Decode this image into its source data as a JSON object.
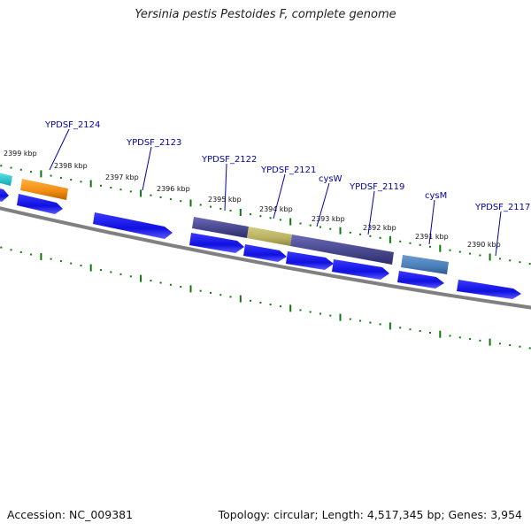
{
  "title": "Yersinia pestis Pestoides F, complete genome",
  "accession": "Accession: NC_009381",
  "stats": "Topology: circular; Length: 4,517,345 bp; Genes: 3,954",
  "kbp_labels": [
    "2399 kbp",
    "2398 kbp",
    "2397 kbp",
    "2396 kbp",
    "2395 kbp",
    "2394 kbp",
    "2393 kbp",
    "2392 kbp",
    "2391 kbp",
    "2390 kbp"
  ],
  "gene_labels": [
    "YPDSF_2124",
    "YPDSF_2123",
    "YPDSF_2122",
    "YPDSF_2121",
    "cysW",
    "YPDSF_2119",
    "cysM",
    "YPDSF_2117"
  ],
  "colors": {
    "cds": "#1010e0",
    "feature_cyan": "#20c8d0",
    "feature_orange": "#f08c10",
    "feature_purple": "#50509a",
    "feature_khaki": "#b8b060",
    "feature_steel": "#4a7fb8",
    "backbone": "#808080",
    "ticks": "#0a7a0a",
    "label": "#0000b0"
  }
}
